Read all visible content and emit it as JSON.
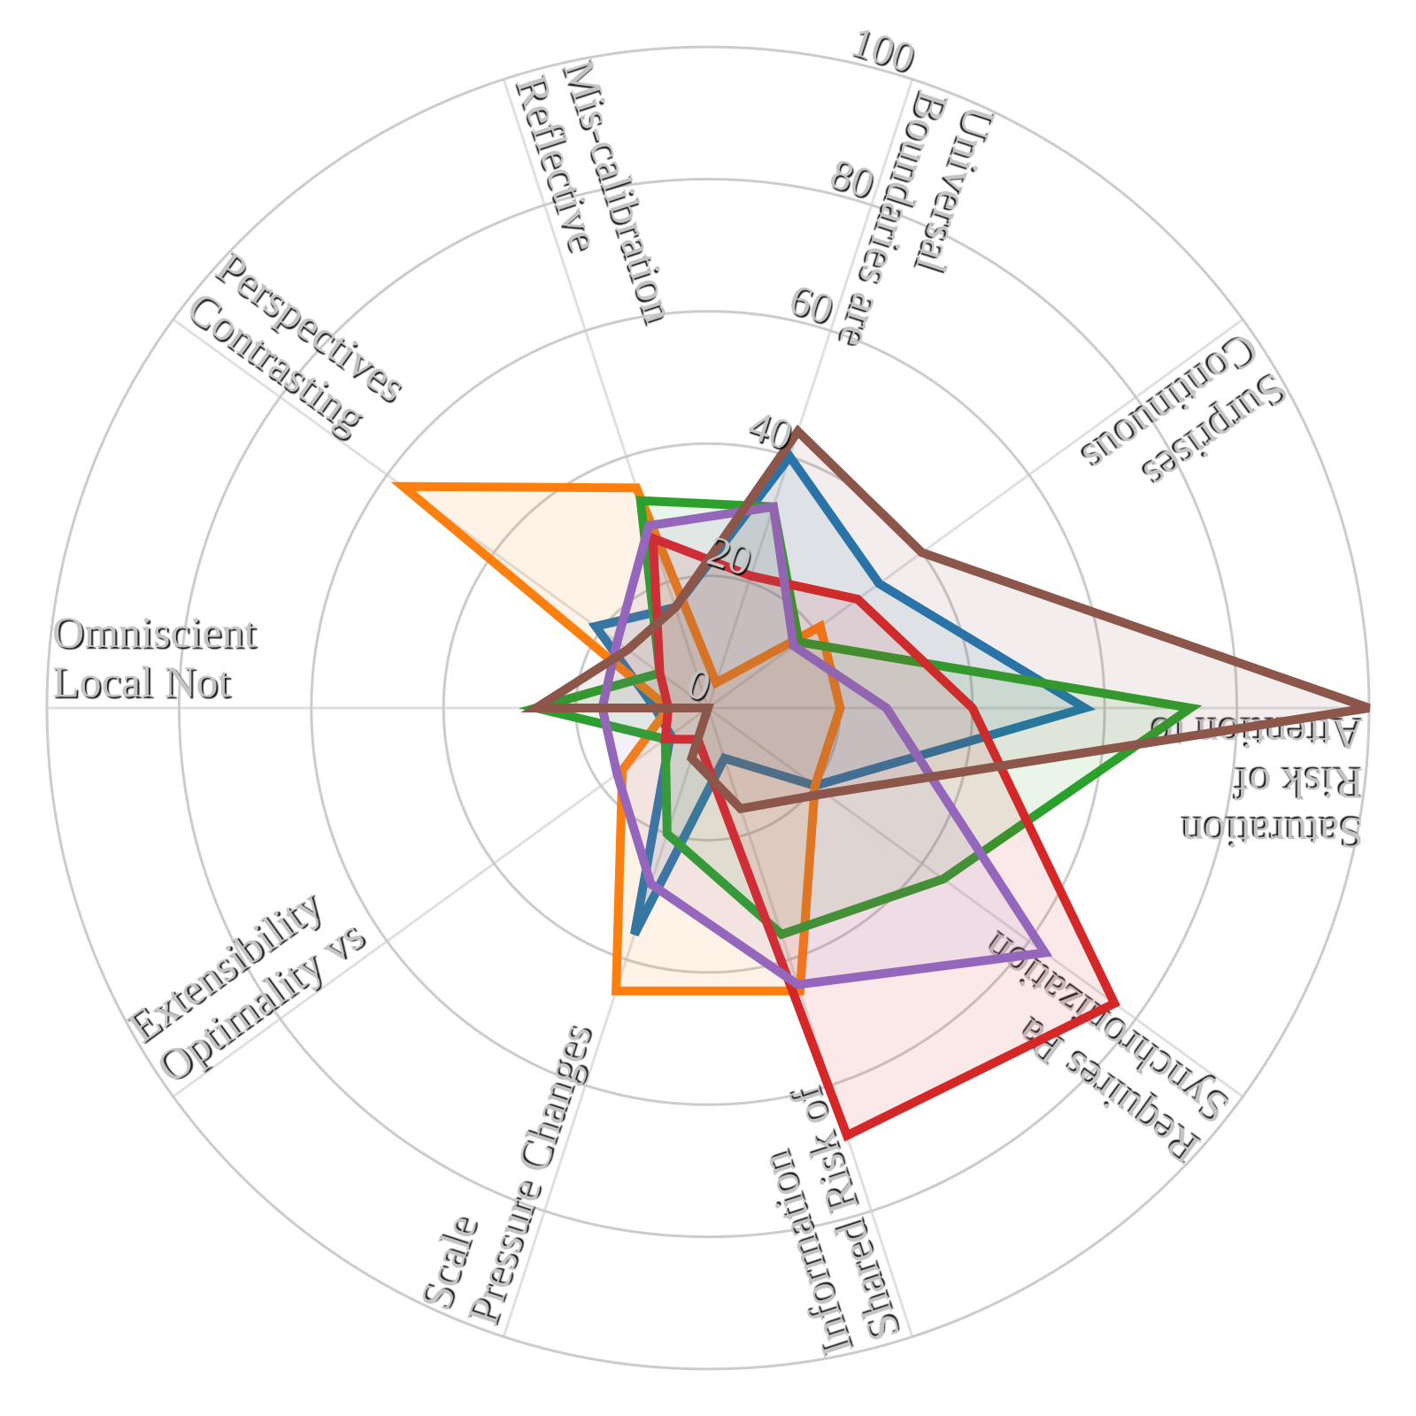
{
  "chart_data": {
    "type": "radar",
    "axes": [
      "Attention to Risk of Saturation",
      "Continuous Surprises",
      "Boundaries are Universal",
      "Reflective Mis-calibration",
      "Contrasting Perspectives",
      "Local Not Omniscient",
      "Optimality vs Extensibility",
      "Pressure Changes Scale",
      "Shared Risk of Information",
      "Synchronization Requires Pa"
    ],
    "radial_ticks": [
      "0",
      "20",
      "40",
      "60",
      "80",
      "100"
    ],
    "rlim": [
      0,
      100
    ],
    "grid": true,
    "series": [
      {
        "color": "#1f77b4",
        "values": [
          57,
          32,
          40,
          16,
          21,
          8,
          7,
          36,
          8,
          20
        ]
      },
      {
        "color": "#ff7f0e",
        "values": [
          20,
          21,
          4,
          35,
          57,
          6,
          16,
          45,
          45,
          20
        ]
      },
      {
        "color": "#2ca02c",
        "values": [
          73,
          17,
          32,
          33,
          9,
          26,
          8,
          20,
          36,
          44
        ]
      },
      {
        "color": "#d62728",
        "values": [
          40,
          28,
          21,
          27,
          9,
          6,
          8,
          5,
          68,
          76
        ]
      },
      {
        "color": "#9467bd",
        "values": [
          27,
          16,
          32,
          29,
          17,
          16,
          17,
          28,
          44,
          63
        ]
      },
      {
        "color": "#8c564b",
        "values": [
          100,
          40,
          44,
          16,
          15,
          26,
          0,
          8,
          16,
          22
        ]
      }
    ]
  }
}
